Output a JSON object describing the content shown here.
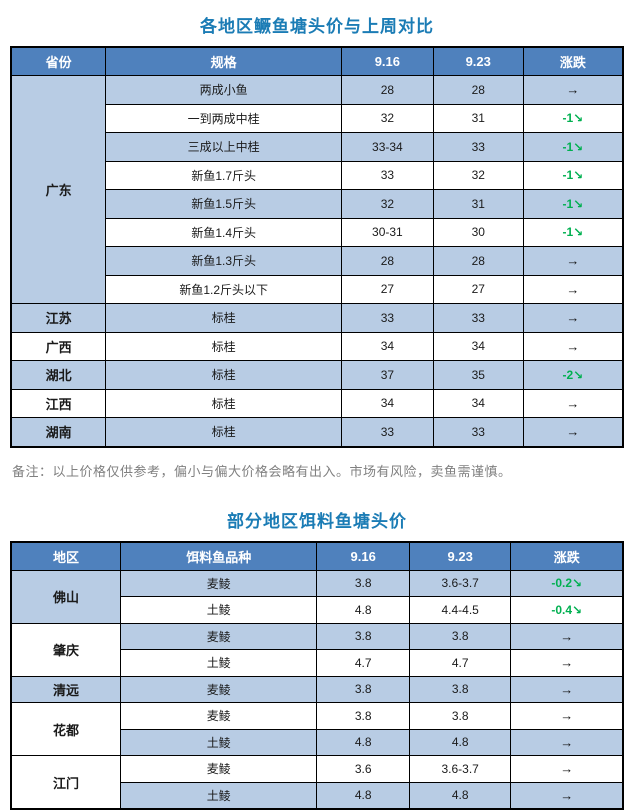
{
  "colors": {
    "header_bg": "#4f81bd",
    "header_text": "#ffffff",
    "row_alt": "#b8cce4",
    "row_white": "#ffffff",
    "border": "#000000",
    "title": "#1b7cb5",
    "note": "#808080",
    "green": "#00b050",
    "text": "#1a1a1a"
  },
  "note": "备注：以上价格仅供参考，偏小与偏大价格会略有出入。市场有风险，卖鱼需谨慎。",
  "table1": {
    "title": "各地区鳜鱼塘头价与上周对比",
    "headers": [
      "省份",
      "规格",
      "9.16",
      "9.23",
      "涨跌"
    ],
    "col_widths": [
      "15.5%",
      "38.5%",
      "15.0%",
      "14.7%",
      "16.3%"
    ],
    "groups": [
      {
        "province": "广东",
        "cell_shade": "blue",
        "rows": [
          {
            "spec": "两成小鱼",
            "p916": "28",
            "p923": "28",
            "change": "→",
            "change_type": "flat"
          },
          {
            "spec": "一到两成中桂",
            "p916": "32",
            "p923": "31",
            "change": "-1↘",
            "change_type": "down"
          },
          {
            "spec": "三成以上中桂",
            "p916": "33-34",
            "p923": "33",
            "change": "-1↘",
            "change_type": "down"
          },
          {
            "spec": "新鱼1.7斤头",
            "p916": "33",
            "p923": "32",
            "change": "-1↘",
            "change_type": "down"
          },
          {
            "spec": "新鱼1.5斤头",
            "p916": "32",
            "p923": "31",
            "change": "-1↘",
            "change_type": "down"
          },
          {
            "spec": "新鱼1.4斤头",
            "p916": "30-31",
            "p923": "30",
            "change": "-1↘",
            "change_type": "down"
          },
          {
            "spec": "新鱼1.3斤头",
            "p916": "28",
            "p923": "28",
            "change": "→",
            "change_type": "flat"
          },
          {
            "spec": "新鱼1.2斤头以下",
            "p916": "27",
            "p923": "27",
            "change": "→",
            "change_type": "flat"
          }
        ]
      },
      {
        "province": "江苏",
        "cell_shade": "blue",
        "rows": [
          {
            "spec": "标桂",
            "p916": "33",
            "p923": "33",
            "change": "→",
            "change_type": "flat"
          }
        ]
      },
      {
        "province": "广西",
        "cell_shade": "white",
        "rows": [
          {
            "spec": "标桂",
            "p916": "34",
            "p923": "34",
            "change": "→",
            "change_type": "flat"
          }
        ]
      },
      {
        "province": "湖北",
        "cell_shade": "blue",
        "rows": [
          {
            "spec": "标桂",
            "p916": "37",
            "p923": "35",
            "change": "-2↘",
            "change_type": "down"
          }
        ]
      },
      {
        "province": "江西",
        "cell_shade": "white",
        "rows": [
          {
            "spec": "标桂",
            "p916": "34",
            "p923": "34",
            "change": "→",
            "change_type": "flat"
          }
        ]
      },
      {
        "province": "湖南",
        "cell_shade": "blue",
        "rows": [
          {
            "spec": "标桂",
            "p916": "33",
            "p923": "33",
            "change": "→",
            "change_type": "flat"
          }
        ]
      }
    ]
  },
  "table2": {
    "title": "部分地区饵料鱼塘头价",
    "headers": [
      "地区",
      "饵料鱼品种",
      "9.16",
      "9.23",
      "涨跌"
    ],
    "col_widths": [
      "17.9%",
      "32.1%",
      "15.1%",
      "16.6%",
      "18.3%"
    ],
    "groups": [
      {
        "province": "佛山",
        "cell_shade": "blue",
        "rows": [
          {
            "spec": "麦鲮",
            "p916": "3.8",
            "p923": "3.6-3.7",
            "change": "-0.2↘",
            "change_type": "down"
          },
          {
            "spec": "土鲮",
            "p916": "4.8",
            "p923": "4.4-4.5",
            "change": "-0.4↘",
            "change_type": "down"
          }
        ]
      },
      {
        "province": "肇庆",
        "cell_shade": "white",
        "rows": [
          {
            "spec": "麦鲮",
            "p916": "3.8",
            "p923": "3.8",
            "change": "→",
            "change_type": "flat"
          },
          {
            "spec": "土鲮",
            "p916": "4.7",
            "p923": "4.7",
            "change": "→",
            "change_type": "flat"
          }
        ]
      },
      {
        "province": "清远",
        "cell_shade": "blue",
        "rows": [
          {
            "spec": "麦鲮",
            "p916": "3.8",
            "p923": "3.8",
            "change": "→",
            "change_type": "flat"
          }
        ]
      },
      {
        "province": "花都",
        "cell_shade": "white",
        "rows": [
          {
            "spec": "麦鲮",
            "p916": "3.8",
            "p923": "3.8",
            "change": "→",
            "change_type": "flat"
          },
          {
            "spec": "土鲮",
            "p916": "4.8",
            "p923": "4.8",
            "change": "→",
            "change_type": "flat"
          }
        ]
      },
      {
        "province": "江门",
        "cell_shade": "white",
        "rows": [
          {
            "spec": "麦鲮",
            "p916": "3.6",
            "p923": "3.6-3.7",
            "change": "→",
            "change_type": "flat"
          },
          {
            "spec": "土鲮",
            "p916": "4.8",
            "p923": "4.8",
            "change": "→",
            "change_type": "flat"
          }
        ]
      }
    ]
  }
}
